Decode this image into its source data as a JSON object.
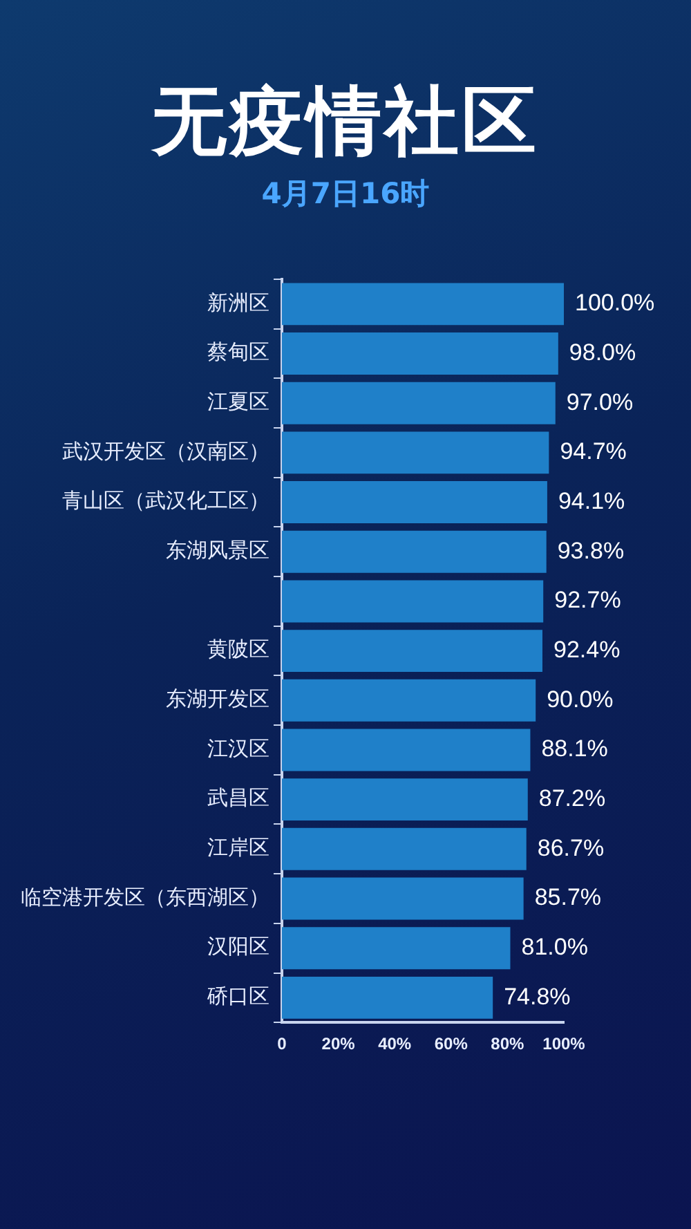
{
  "chart_data": {
    "type": "bar",
    "orientation": "horizontal",
    "title": "无疫情社区",
    "subtitle": "4月7日16时",
    "categories": [
      "新洲区",
      "蔡甸区",
      "江夏区",
      "武汉开发区（汉南区）",
      "青山区（武汉化工区）",
      "东湖风景区",
      null,
      "黄陂区",
      "东湖开发区",
      "江汉区",
      "武昌区",
      "江岸区",
      "临空港开发区（东西湖区）",
      "汉阳区",
      "硚口区"
    ],
    "values": [
      100.0,
      98.0,
      97.0,
      94.7,
      94.1,
      93.8,
      92.7,
      92.4,
      90.0,
      88.1,
      87.2,
      86.7,
      85.7,
      81.0,
      74.8
    ],
    "value_labels": [
      "100.0%",
      "98.0%",
      "97.0%",
      "94.7%",
      "94.1%",
      "93.8%",
      "92.7%",
      "92.4%",
      "90.0%",
      "88.1%",
      "87.2%",
      "86.7%",
      "85.7%",
      "81.0%",
      "74.8%"
    ],
    "color": "#1f80c9",
    "xlim": [
      0,
      100
    ],
    "xticks": [
      0,
      {
        "value": 20,
        "label": "20%"
      },
      {
        "value": 40,
        "label": "40%"
      },
      {
        "value": 60,
        "label": "60%"
      },
      {
        "value": 80,
        "label": "80%"
      },
      {
        "value": 100,
        "label": "100%"
      }
    ],
    "grid": false,
    "legend": false
  }
}
